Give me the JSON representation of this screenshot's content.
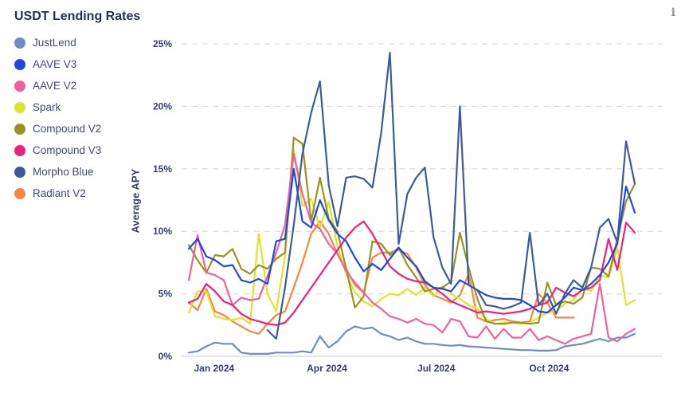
{
  "header": {
    "info_icon": "i"
  },
  "y_axis": {
    "label": "Average APY",
    "ticks": [
      "0%",
      "5%",
      "10%",
      "15%",
      "20%",
      "25%"
    ],
    "tick_values": [
      0,
      5,
      10,
      15,
      20,
      25
    ]
  },
  "x_axis": {
    "ticks": [
      {
        "label": "Jan 2024",
        "week": 2.9
      },
      {
        "label": "Apr 2024",
        "week": 15.8
      },
      {
        "label": "Jul 2024",
        "week": 28.3
      },
      {
        "label": "Oct 2024",
        "week": 41.2
      }
    ]
  },
  "chart_data": {
    "type": "line",
    "title": "USDT Lending Rates",
    "ylabel": "Average APY",
    "ylim": [
      0,
      25
    ],
    "x_range": "52 weekly points, late Dec 2023 - mid Dec 2024",
    "grid": "dashed horizontal gridlines at 5% steps",
    "legend_position": "top-left vertical",
    "series": [
      {
        "name": "JustLend",
        "color": "#6e8cc7",
        "values": [
          0.3,
          0.4,
          0.8,
          1.1,
          1.0,
          1.0,
          0.3,
          0.2,
          0.2,
          0.2,
          0.3,
          0.3,
          0.3,
          0.4,
          0.3,
          1.6,
          0.7,
          1.2,
          2.0,
          2.4,
          2.2,
          2.3,
          1.8,
          1.6,
          1.3,
          1.5,
          1.2,
          1.0,
          1.0,
          0.9,
          0.85,
          0.9,
          0.8,
          0.75,
          0.7,
          0.65,
          0.6,
          0.55,
          0.5,
          0.5,
          0.45,
          0.45,
          0.5,
          0.8,
          0.9,
          1.0,
          1.2,
          1.4,
          1.2,
          1.5,
          1.5,
          1.8
        ]
      },
      {
        "name": "AAVE V3",
        "color": "#1d49e0",
        "values": [
          8.6,
          9.4,
          8.0,
          7.7,
          7.2,
          7.3,
          6.1,
          5.9,
          6.2,
          5.8,
          9.2,
          9.4,
          15.0,
          10.8,
          10.3,
          12.5,
          10.9,
          9.8,
          9.2,
          7.9,
          6.8,
          7.4,
          6.9,
          7.8,
          8.7,
          7.9,
          7.2,
          6.0,
          5.5,
          5.4,
          5.2,
          6.1,
          5.7,
          5.3,
          4.9,
          4.7,
          4.6,
          4.6,
          4.5,
          4.1,
          3.6,
          3.5,
          4.1,
          4.7,
          5.5,
          5.3,
          5.8,
          6.5,
          7.5,
          9.0,
          13.6,
          11.5
        ]
      },
      {
        "name": "AAVE V2",
        "color": "#f0609f",
        "values": [
          6.1,
          9.7,
          6.7,
          6.5,
          6.1,
          4.1,
          4.7,
          4.5,
          4.6,
          6.4,
          8.3,
          10.5,
          16.2,
          13.0,
          10.7,
          10.2,
          9.0,
          8.2,
          6.8,
          5.9,
          5.1,
          4.3,
          3.8,
          3.2,
          3.0,
          2.7,
          3.0,
          2.6,
          2.5,
          1.9,
          3.0,
          2.8,
          1.6,
          1.5,
          2.4,
          1.4,
          2.2,
          1.5,
          1.5,
          2.2,
          1.3,
          1.6,
          1.3,
          1.0,
          1.4,
          1.6,
          1.8,
          5.8,
          1.5,
          1.2,
          1.8,
          2.2
        ]
      },
      {
        "name": "Spark",
        "color": "#dfe32d",
        "values": [
          3.5,
          5.2,
          5.2,
          3.2,
          3.0,
          2.9,
          3.1,
          2.6,
          9.8,
          5.0,
          3.6,
          8.0,
          16.5,
          12.0,
          12.6,
          10.3,
          12.4,
          8.8,
          6.6,
          5.1,
          4.4,
          4.0,
          4.6,
          5.0,
          4.9,
          5.4,
          4.9,
          5.5,
          4.8,
          5.6,
          5.0,
          4.6,
          4.1,
          3.8,
          3.0,
          2.6,
          2.7,
          2.7,
          2.6,
          2.7,
          3.1,
          3.5,
          3.6,
          4.2,
          4.5,
          5.5,
          5.2,
          6.5,
          6.3,
          8.7,
          4.1,
          4.5
        ]
      },
      {
        "name": "Compound V2",
        "color": "#99941f",
        "values": [
          8.9,
          7.7,
          6.7,
          8.1,
          8.0,
          8.6,
          7.0,
          6.6,
          7.3,
          7.0,
          7.8,
          8.3,
          17.5,
          17.0,
          10.8,
          14.3,
          11.0,
          10.0,
          7.0,
          3.9,
          4.8,
          9.2,
          9.0,
          8.1,
          8.7,
          7.3,
          6.3,
          5.2,
          5.4,
          5.5,
          6.0,
          9.9,
          7.1,
          4.6,
          2.8,
          2.6,
          2.6,
          2.7,
          2.7,
          2.6,
          2.7,
          5.9,
          4.1,
          4.4,
          4.2,
          4.7,
          7.1,
          7.0,
          6.4,
          9.4,
          12.4,
          13.8
        ]
      },
      {
        "name": "Compound V3",
        "color": "#ee2079",
        "values": [
          4.3,
          4.6,
          5.8,
          5.2,
          4.4,
          4.1,
          3.4,
          3.0,
          2.8,
          2.6,
          2.5,
          2.7,
          3.5,
          4.5,
          5.5,
          6.5,
          7.5,
          8.5,
          9.5,
          10.3,
          10.8,
          9.8,
          8.5,
          7.2,
          6.6,
          6.2,
          6.0,
          5.9,
          5.5,
          5.0,
          4.4,
          4.1,
          3.8,
          3.5,
          3.6,
          3.5,
          3.4,
          3.5,
          3.6,
          3.8,
          4.1,
          4.3,
          5.5,
          5.1,
          4.8,
          5.3,
          5.5,
          6.1,
          9.4,
          6.9,
          10.7,
          9.9
        ]
      },
      {
        "name": "Morpho Blue",
        "color": "#3d5b9a",
        "values": [
          null,
          null,
          null,
          null,
          null,
          null,
          null,
          null,
          null,
          2.1,
          1.4,
          5.5,
          10.5,
          16.2,
          19.5,
          22.0,
          13.7,
          10.4,
          14.3,
          14.4,
          14.2,
          13.5,
          17.9,
          24.3,
          9.0,
          13.0,
          14.3,
          15.1,
          9.5,
          7.1,
          5.8,
          20.0,
          5.7,
          5.3,
          4.1,
          4.0,
          3.8,
          4.0,
          4.3,
          9.9,
          4.1,
          5.0,
          3.4,
          5.0,
          6.1,
          5.5,
          7.1,
          10.3,
          11.0,
          9.1,
          17.2,
          13.8
        ]
      },
      {
        "name": "Radiant V2",
        "color": "#f88540",
        "values": [
          4.3,
          3.7,
          5.4,
          3.6,
          3.3,
          2.8,
          2.4,
          2.0,
          1.8,
          2.6,
          3.3,
          3.6,
          5.5,
          7.5,
          9.8,
          10.8,
          9.8,
          8.2,
          7.0,
          5.7,
          5.1,
          7.9,
          8.3,
          8.3,
          8.5,
          8.2,
          7.1,
          5.7,
          4.9,
          4.6,
          4.3,
          4.9,
          6.6,
          3.1,
          2.8,
          2.9,
          3.0,
          2.8,
          2.7,
          2.8,
          5.0,
          4.3,
          3.1,
          3.1,
          3.1,
          null,
          null,
          null,
          null,
          null,
          null,
          null
        ]
      }
    ]
  }
}
